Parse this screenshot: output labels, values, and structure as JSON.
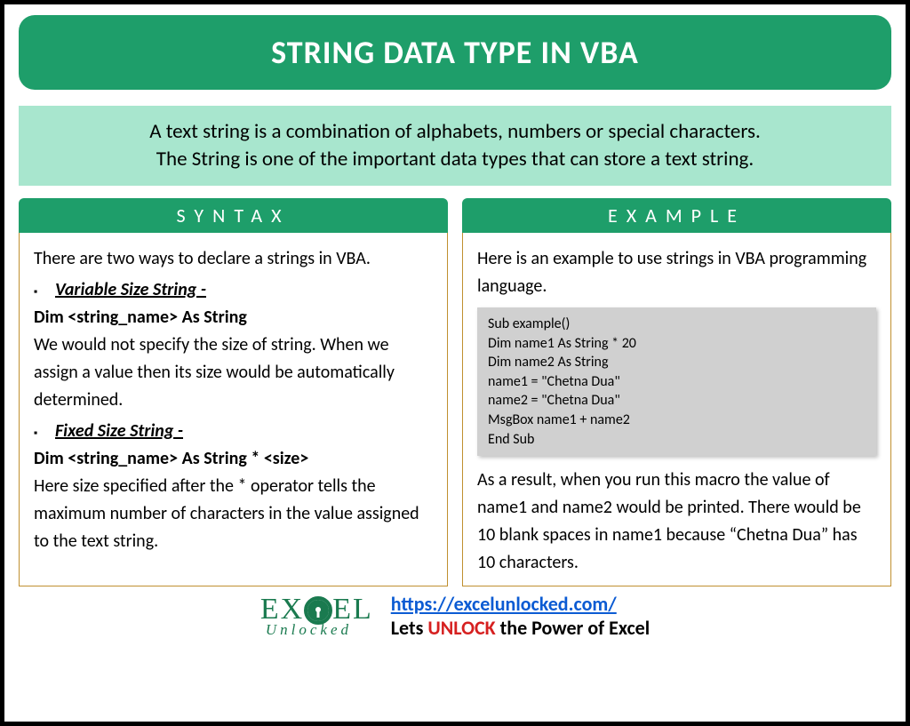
{
  "colors": {
    "frame_border": "#000000",
    "title_bg": "#1e9e6a",
    "title_text": "#ffffff",
    "intro_bg": "#a8e6ce",
    "column_header_bg": "#1e9e6a",
    "column_border": "#c09030",
    "code_bg": "#d0d0d0",
    "link_color": "#0b5bd3",
    "unlock_color": "#d62020",
    "logo_color": "#1a7a4f"
  },
  "title": "STRING DATA TYPE IN VBA",
  "intro_line1": "A text string is a combination of alphabets, numbers or special characters.",
  "intro_line2": "The String is one of the important data types that can store a text string.",
  "syntax": {
    "header": "SYNTAX",
    "intro": "There are two ways to declare a strings in VBA.",
    "item1_title": "Variable Size String -",
    "item1_code": "Dim <string_name> As String",
    "item1_desc": "We would not specify the size of string. When we assign a value then its size would be automatically determined.",
    "item2_title": "Fixed Size String -",
    "item2_code": "Dim <string_name> As String * <size>",
    "item2_desc": "Here size specified after the * operator tells the maximum number of characters in the value assigned to the text string."
  },
  "example": {
    "header": "EXAMPLE",
    "intro": "Here is an example to use strings in VBA programming language.",
    "code": [
      "Sub example()",
      "Dim name1 As String * 20",
      "Dim name2 As String",
      "name1 = \"Chetna Dua\"",
      "name2 = \"Chetna Dua\"",
      "MsgBox name1 + name2",
      "End Sub"
    ],
    "result": "As a result, when you run this macro the value of name1 and name2 would be printed. There would be 10 blank spaces in name1 because “Chetna Dua” has 10 characters."
  },
  "footer": {
    "logo_top_pre": "EX",
    "logo_top_post": "EL",
    "logo_sub": "Unlocked",
    "url": "https://excelunlocked.com/",
    "tag_pre": "Lets ",
    "tag_unlock": "UNLOCK",
    "tag_post": " the Power of Excel"
  }
}
